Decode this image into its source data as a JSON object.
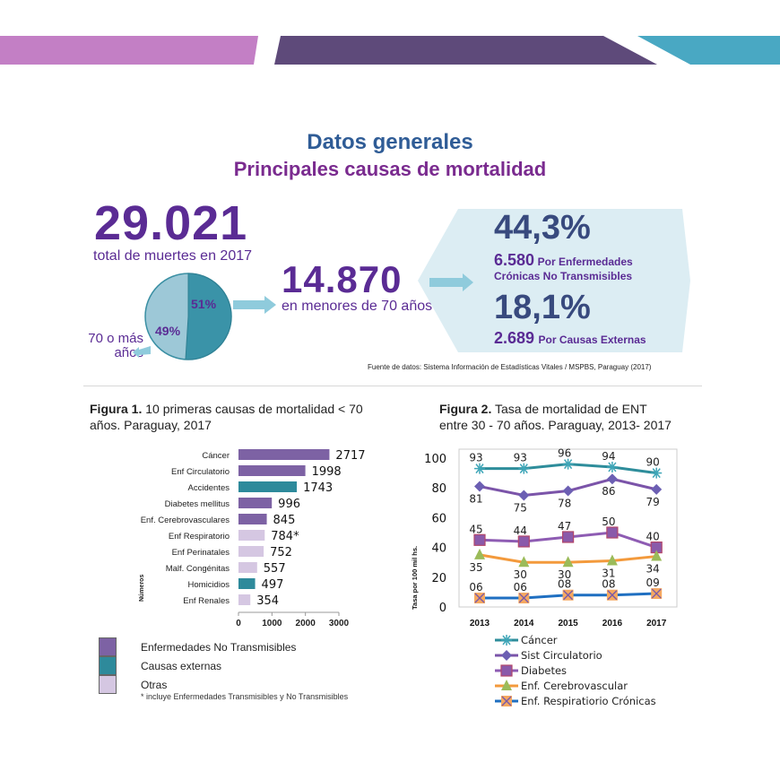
{
  "header": {
    "title": "Datos generales",
    "subtitle": "Principales causas de mortalidad",
    "banner_colors": [
      "#c37fc5",
      "#5e4a7a",
      "#49a8c3"
    ]
  },
  "summary": {
    "total_deaths": "29.021",
    "total_label": "total de muertes en 2017",
    "pie": {
      "under70_pct": "51%",
      "over70_pct": "49%",
      "under70_value": 51,
      "over70_value": 49,
      "over70_label_line1": "70 o más",
      "over70_label_line2": "años"
    },
    "under70_value": "14.870",
    "under70_label": "en menores de 70 años",
    "ncd_pct": "44,3%",
    "ncd_count": "6.580",
    "ncd_label_line1": "Por Enfermedades",
    "ncd_label_line2": "Crónicas No Transmisibles",
    "ext_pct": "18,1%",
    "ext_count": "2.689",
    "ext_label": "Por Causas Externas",
    "source": "Fuente de datos: Sistema Información de Estadísticas Vitales / MSPBS, Paraguay (2017)"
  },
  "chart_data": [
    {
      "type": "bar",
      "title_bold": "Figura 1.",
      "title": "10 primeras causas de mortalidad < 70 años. Paraguay, 2017",
      "ylabel": "Números",
      "xlim": [
        0,
        3000
      ],
      "xticks": [
        "0",
        "1000",
        "2000",
        "3000"
      ],
      "categories": [
        "Cáncer",
        "Enf Circulatorio",
        "Accidentes",
        "Diabetes mellitus",
        "Enf. Cerebrovasculares",
        "Enf Respiratorio",
        "Enf Perinatales",
        "Malf. Congénitas",
        "Homicidios",
        "Enf Renales"
      ],
      "values": [
        2717,
        1998,
        1743,
        996,
        845,
        784,
        752,
        557,
        497,
        354
      ],
      "labels": [
        "2717",
        "1998",
        "1743",
        "996",
        "845",
        "784*",
        "752",
        "557",
        "497",
        "354"
      ],
      "groups": [
        "ent",
        "ent",
        "ext",
        "ent",
        "ent",
        "otras",
        "otras",
        "otras",
        "ext",
        "otras"
      ],
      "legend": [
        {
          "key": "ent",
          "name": "Enfermedades No Transmisibles",
          "color": "#7d62a4"
        },
        {
          "key": "ext",
          "name": "Causas externas",
          "color": "#2e8a9b"
        },
        {
          "key": "otras",
          "name": "Otras",
          "color": "#d5c7e2"
        }
      ],
      "footnote": "* incluye Enfermedades Transmisibles y No Transmisibles"
    },
    {
      "type": "line",
      "title_bold": "Figura 2.",
      "title_line1": "Tasa de mortalidad de ENT",
      "title_line2": "entre 30 - 70 años. Paraguay, 2013- 2017",
      "ylabel": "Tasa por 100 mil hs.",
      "ylim": [
        0,
        100
      ],
      "yticks": [
        "0",
        "20",
        "40",
        "60",
        "80",
        "100"
      ],
      "x": [
        "2013",
        "2014",
        "2015",
        "2016",
        "2017"
      ],
      "legend_position": "bottom",
      "series": [
        {
          "name": "Cáncer",
          "values": [
            93,
            93,
            96,
            94,
            90
          ],
          "labels": [
            "93",
            "93",
            "96",
            "94",
            "90"
          ],
          "color": "#2e8d9b",
          "marker": "asterisk",
          "label_pos": "above"
        },
        {
          "name": "Sist Circulatorio",
          "values": [
            81,
            75,
            78,
            86,
            79
          ],
          "labels": [
            "81",
            "75",
            "78",
            "86",
            "79"
          ],
          "color": "#7b54a9",
          "marker": "diamond",
          "label_pos": "below"
        },
        {
          "name": "Diabetes",
          "values": [
            45,
            44,
            47,
            50,
            40
          ],
          "labels": [
            "45",
            "44",
            "47",
            "50",
            "40"
          ],
          "color": "#8e5cb3",
          "marker": "square",
          "label_pos": "above"
        },
        {
          "name": "Enf. Cerebrovascular",
          "values": [
            35,
            30,
            30,
            31,
            34
          ],
          "labels": [
            "35",
            "30",
            "30",
            "31",
            "34"
          ],
          "color": "#f39a3c",
          "marker": "triangle",
          "label_pos": "below"
        },
        {
          "name": "Enf. Respiratiorio Crónicas",
          "values": [
            6,
            6,
            8,
            8,
            9
          ],
          "labels": [
            "06",
            "06",
            "08",
            "08",
            "09"
          ],
          "color": "#1f6fc1",
          "marker": "x",
          "label_pos": "above"
        }
      ]
    }
  ]
}
